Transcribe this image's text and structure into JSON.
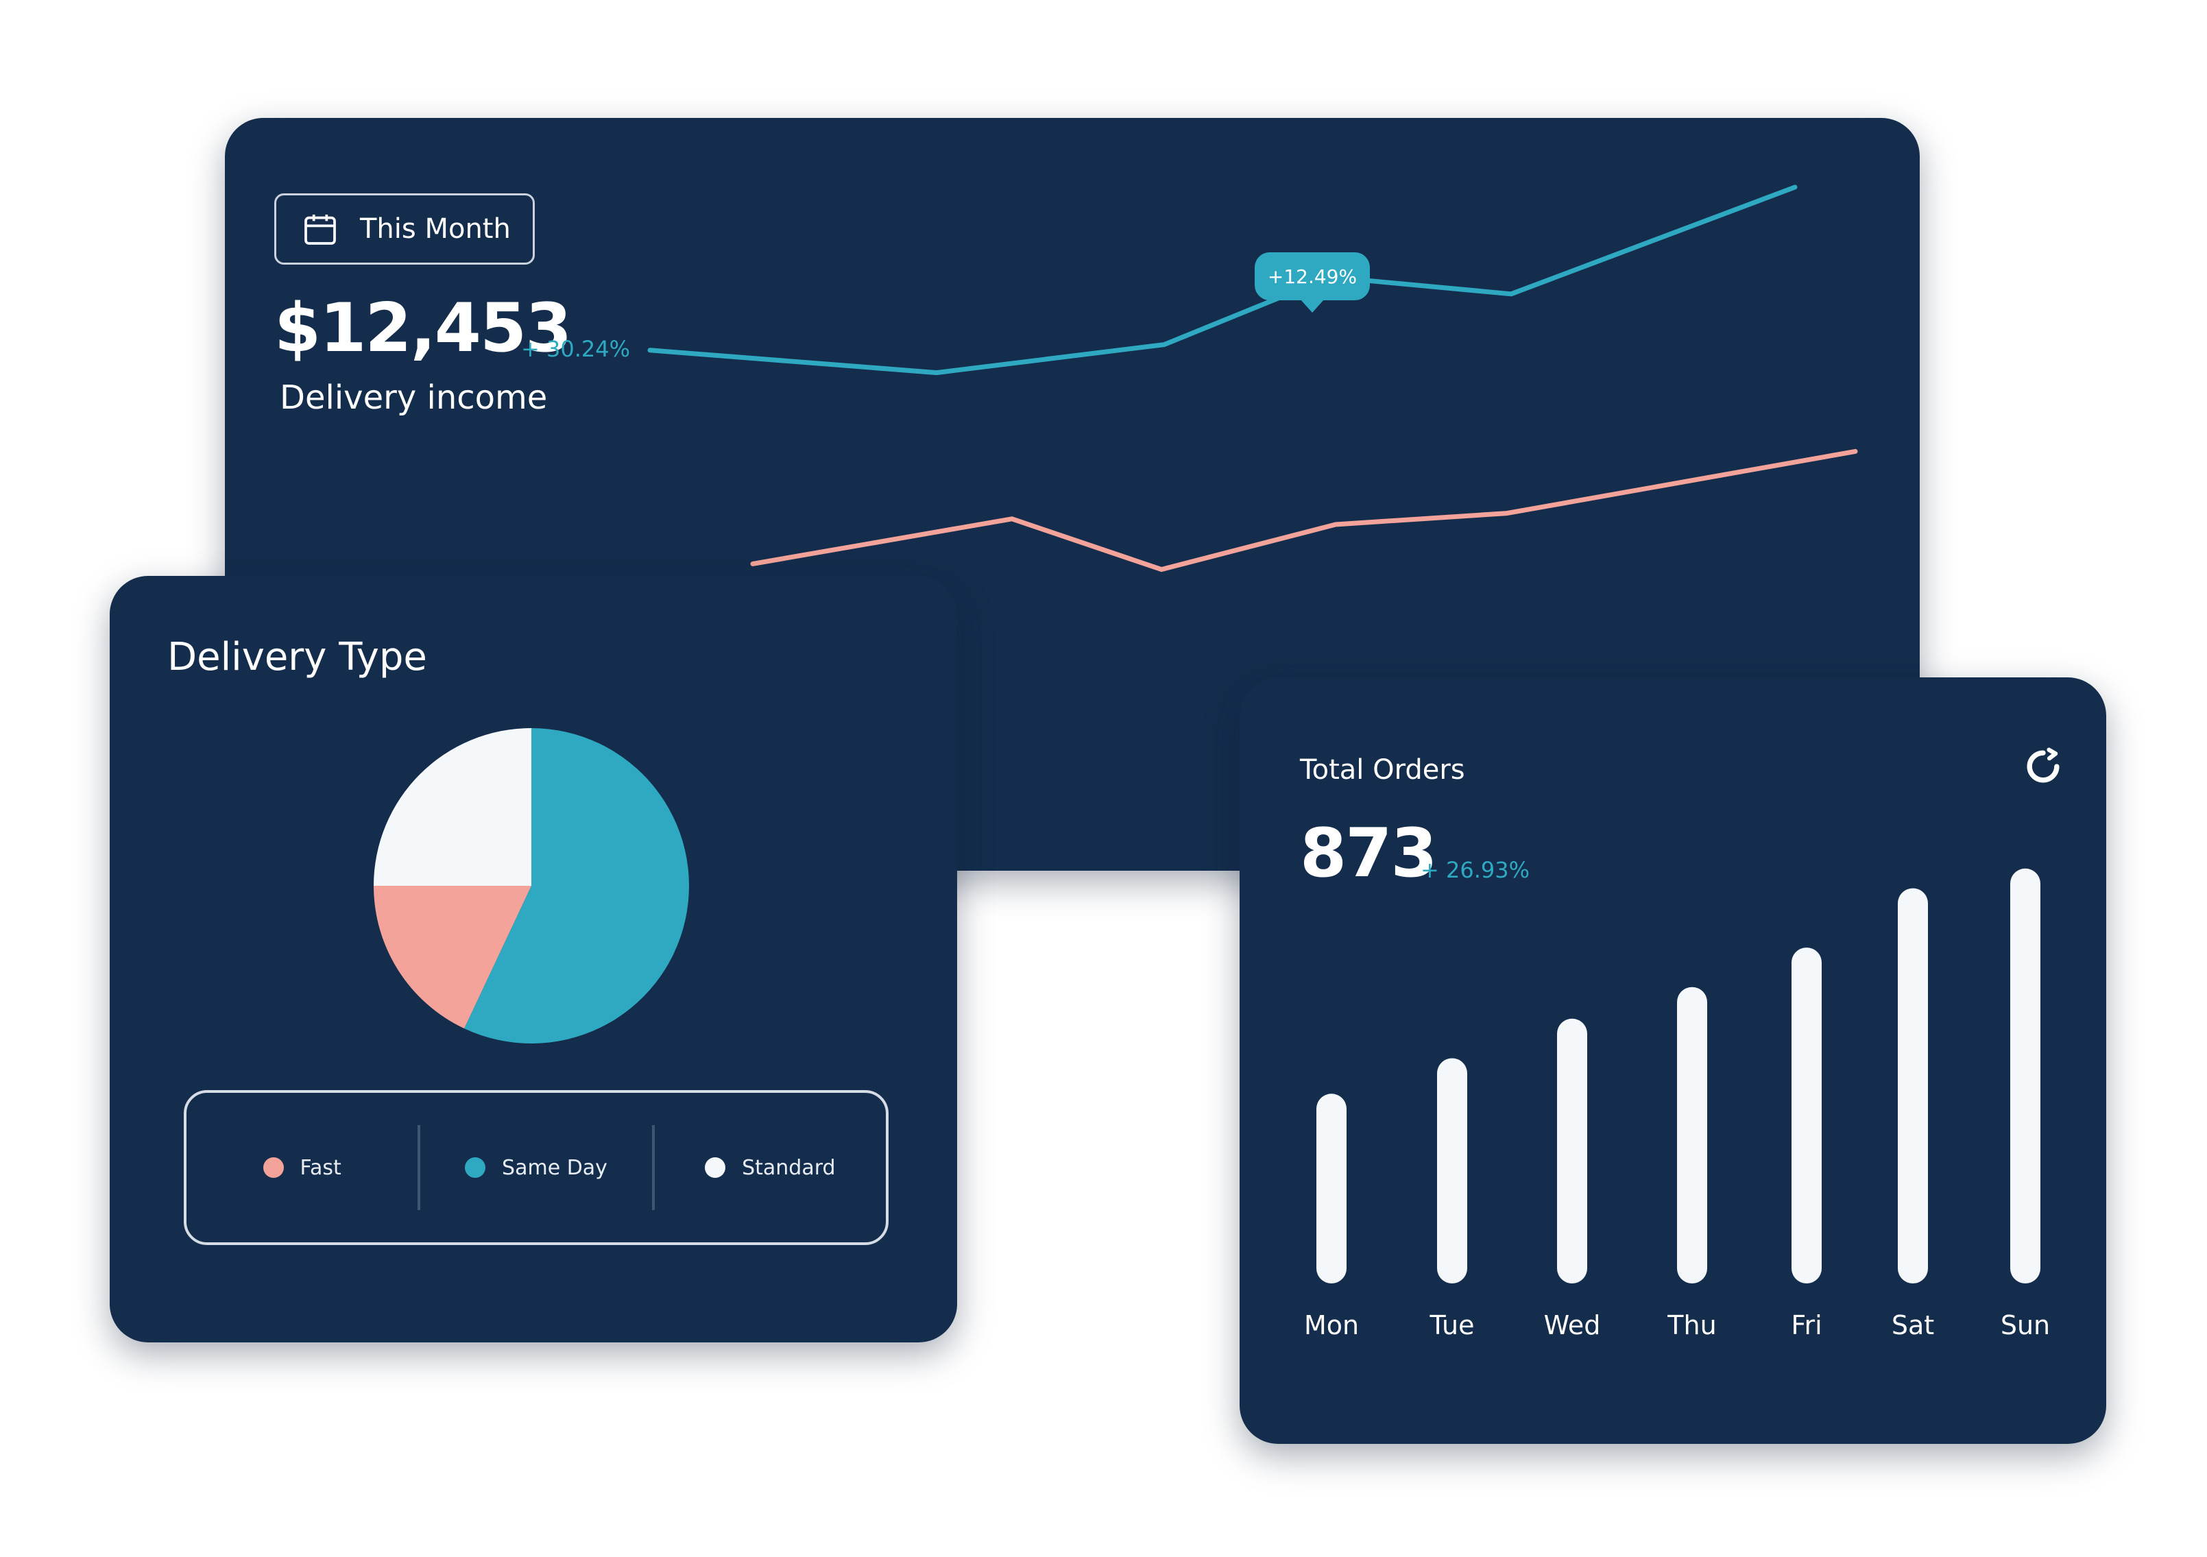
{
  "colors": {
    "card_background": "#142d4c",
    "teal": "#2fa9c1",
    "coral": "#f3a399",
    "white": "#f5f8fb"
  },
  "income": {
    "range_label": "This Month",
    "range_icon": "calendar-icon",
    "value": "$12,453",
    "change": "+ 30.24%",
    "label": "Delivery income",
    "tooltip": "+12.49%"
  },
  "delivery_type": {
    "title": "Delivery Type",
    "legend": [
      {
        "label": "Fast",
        "color": "#f3a399"
      },
      {
        "label": "Same Day",
        "color": "#2fa9c1"
      },
      {
        "label": "Standard",
        "color": "#f5f8fb"
      }
    ]
  },
  "orders": {
    "title": "Total Orders",
    "value": "873",
    "change": "+ 26.93%",
    "refresh_icon": "refresh-icon"
  },
  "chart_data": [
    {
      "type": "line",
      "x": [
        0,
        1,
        2,
        3,
        4,
        5,
        6,
        7
      ],
      "series": [
        {
          "color": "#2fa9c1",
          "values": [
            0.66,
            0.62,
            0.67,
            0.79,
            0.76,
            0.95,
            null,
            null
          ],
          "x_start": 0
        },
        {
          "color": "#f3a399",
          "values": [
            0.28,
            0.36,
            0.27,
            0.35,
            0.37,
            0.48,
            null,
            null
          ],
          "x_start": 0
        }
      ],
      "annotation": {
        "series": 0,
        "point": 3,
        "label": "+12.49%"
      },
      "ylim": [
        0,
        1
      ],
      "grid": false,
      "legend": "none"
    },
    {
      "type": "pie",
      "categories": [
        "Same Day",
        "Fast",
        "Standard"
      ],
      "values": [
        57,
        18,
        25
      ],
      "colors": [
        "#2fa9c1",
        "#f3a399",
        "#f5f8fb"
      ],
      "legend": "bottom"
    },
    {
      "type": "bar",
      "categories": [
        "Mon",
        "Tue",
        "Wed",
        "Thu",
        "Fri",
        "Sat",
        "Sun"
      ],
      "values": [
        0.48,
        0.57,
        0.67,
        0.75,
        0.85,
        1.0,
        1.05
      ],
      "ylim": [
        0,
        1.1
      ],
      "grid": false,
      "legend": "none"
    }
  ]
}
